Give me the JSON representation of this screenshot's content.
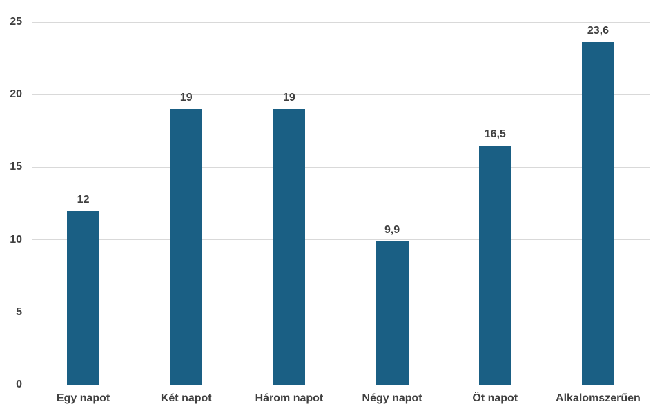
{
  "chart_data": {
    "type": "bar",
    "categories": [
      "Egy napot",
      "Két napot",
      "Három napot",
      "Négy napot",
      "Öt napot",
      "Alkalomszerűen"
    ],
    "values": [
      12,
      19,
      19,
      9.9,
      16.5,
      23.6
    ],
    "value_labels": [
      "12",
      "19",
      "19",
      "9,9",
      "16,5",
      "23,6"
    ],
    "title": "",
    "xlabel": "",
    "ylabel": "",
    "ylim": [
      0,
      25
    ],
    "yticks": [
      0,
      5,
      10,
      15,
      20,
      25
    ],
    "grid": "horizontal",
    "legend_position": "none",
    "colors": {
      "bar": "#1A5F84",
      "gridline": "#D9D9D9",
      "axis_line": "#D4D4D4",
      "tick_label": "#404040",
      "category_label": "#404040",
      "value_label": "#404040",
      "background": "#FFFFFF"
    }
  }
}
